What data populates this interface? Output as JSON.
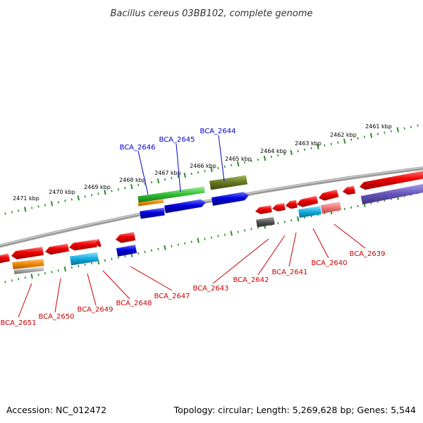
{
  "title": "Bacillus cereus 03BB102, complete genome",
  "footer": {
    "accession": "Accession: NC_012472",
    "summary": "Topology: circular; Length: 5,269,628 bp; Genes: 5,544"
  },
  "colors": {
    "backbone": "#8a8a8a",
    "ticks": "#2e8b2e",
    "label_upper": "#0000cc",
    "label_lower": "#cc0000",
    "red": "#ee0000",
    "blue": "#0000dd",
    "green": "#33bb33",
    "olive": "#667722",
    "orange": "#ee8800",
    "cyan": "#11aadd",
    "pink": "#ee7777",
    "purple": "#6655bb",
    "grey": "#555555",
    "silver": "#aaaaaa"
  },
  "tick_labels": [
    "2461 kbp",
    "2462 kbp",
    "2463 kbp",
    "2464 kbp",
    "2465 kbp",
    "2466 kbp",
    "2467 kbp",
    "2468 kbp",
    "2469 kbp",
    "2470 kbp",
    "2471 kbp"
  ],
  "gene_labels_upper": [
    "BCA_2644",
    "BCA_2645",
    "BCA_2646"
  ],
  "gene_labels_lower": [
    "BCA_2639",
    "BCA_2640",
    "BCA_2641",
    "BCA_2642",
    "BCA_2643",
    "BCA_2647",
    "BCA_2648",
    "BCA_2649",
    "BCA_2650",
    "BCA_2651"
  ]
}
